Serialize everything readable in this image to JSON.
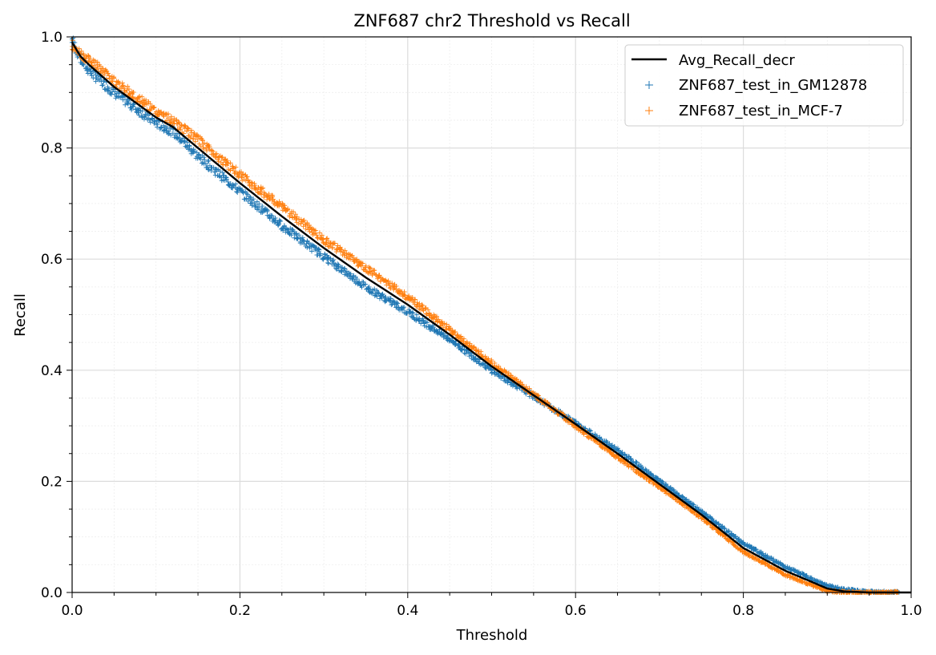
{
  "chart_data": {
    "type": "scatter",
    "title": "ZNF687 chr2 Threshold vs Recall",
    "xlabel": "Threshold",
    "ylabel": "Recall",
    "xlim": [
      0,
      1
    ],
    "ylim": [
      0,
      1
    ],
    "xticks": [
      "0.0",
      "0.2",
      "0.4",
      "0.6",
      "0.8",
      "1.0"
    ],
    "yticks": [
      "0.0",
      "0.2",
      "0.4",
      "0.6",
      "0.8",
      "1.0"
    ],
    "grid": true,
    "minor_grid": true,
    "legend_position": "top-right",
    "series": [
      {
        "name": "Avg_Recall_decr",
        "kind": "line",
        "color": "#000000",
        "x": [
          0,
          0.01,
          0.02,
          0.05,
          0.1,
          0.12,
          0.15,
          0.2,
          0.25,
          0.3,
          0.35,
          0.4,
          0.45,
          0.5,
          0.55,
          0.6,
          0.65,
          0.7,
          0.75,
          0.8,
          0.85,
          0.88,
          0.9,
          0.92,
          0.95,
          1.0
        ],
        "y": [
          0.99,
          0.965,
          0.95,
          0.91,
          0.855,
          0.838,
          0.8,
          0.737,
          0.677,
          0.62,
          0.567,
          0.518,
          0.464,
          0.407,
          0.355,
          0.303,
          0.25,
          0.195,
          0.14,
          0.08,
          0.039,
          0.02,
          0.007,
          0.002,
          0.0,
          0.0
        ]
      },
      {
        "name": "ZNF687_test_in_GM12878",
        "kind": "scatter",
        "marker": "+",
        "color": "#1f77b4",
        "x": [
          0,
          0.01,
          0.02,
          0.05,
          0.1,
          0.12,
          0.15,
          0.2,
          0.25,
          0.3,
          0.35,
          0.4,
          0.45,
          0.5,
          0.55,
          0.6,
          0.65,
          0.7,
          0.75,
          0.8,
          0.85,
          0.88,
          0.9,
          0.92,
          0.95,
          1.0
        ],
        "y": [
          0.995,
          0.96,
          0.94,
          0.9,
          0.845,
          0.83,
          0.785,
          0.722,
          0.66,
          0.605,
          0.55,
          0.505,
          0.456,
          0.4,
          0.353,
          0.305,
          0.256,
          0.2,
          0.145,
          0.088,
          0.046,
          0.026,
          0.012,
          0.005,
          0.001,
          0.0
        ]
      },
      {
        "name": "ZNF687_test_in_MCF-7",
        "kind": "scatter",
        "marker": "+",
        "color": "#ff7f0e",
        "x": [
          0,
          0.01,
          0.02,
          0.05,
          0.1,
          0.12,
          0.15,
          0.2,
          0.25,
          0.3,
          0.35,
          0.4,
          0.45,
          0.5,
          0.55,
          0.6,
          0.65,
          0.7,
          0.75,
          0.8,
          0.85,
          0.88,
          0.9,
          0.92,
          0.95,
          1.0
        ],
        "y": [
          0.985,
          0.97,
          0.96,
          0.92,
          0.865,
          0.848,
          0.815,
          0.752,
          0.694,
          0.635,
          0.584,
          0.532,
          0.473,
          0.413,
          0.357,
          0.3,
          0.244,
          0.19,
          0.135,
          0.073,
          0.032,
          0.014,
          0.003,
          0.0,
          0.0,
          0.0
        ]
      }
    ]
  }
}
